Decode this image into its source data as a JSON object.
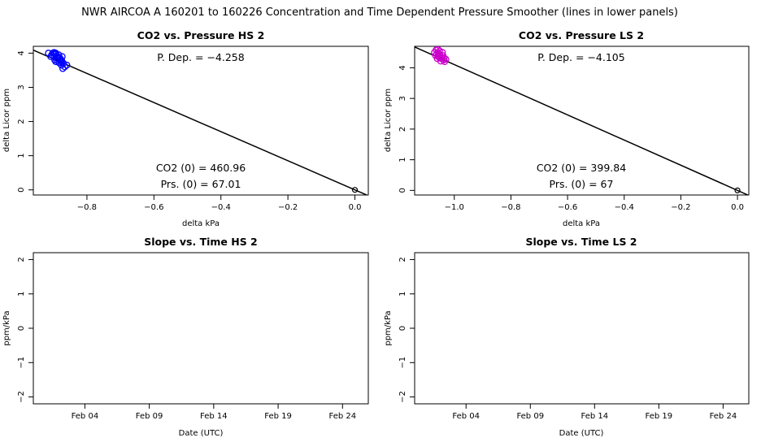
{
  "page_title": "NWR   AIRCOA A   160201 to 160226   Concentration and Time Dependent Pressure Smoother (lines in lower panels)",
  "chart_data": [
    {
      "id": "hs-pressure",
      "type": "scatter",
      "title": "CO2 vs. Pressure HS 2",
      "xlabel": "delta kPa",
      "ylabel": "delta Licor ppm",
      "xlim": [
        -0.96,
        0.04
      ],
      "ylim": [
        -0.15,
        4.2
      ],
      "xticks": [
        -0.8,
        -0.6,
        -0.4,
        -0.2,
        0.0
      ],
      "xtick_labels": [
        "−0.8",
        "−0.6",
        "−0.4",
        "−0.2",
        "0.0"
      ],
      "yticks": [
        0,
        1,
        2,
        3,
        4
      ],
      "ytick_labels": [
        "0",
        "1",
        "2",
        "3",
        "4"
      ],
      "point_color": "#0000ff",
      "points": [
        [
          -0.915,
          4.0
        ],
        [
          -0.905,
          3.95
        ],
        [
          -0.898,
          3.9
        ],
        [
          -0.893,
          4.0
        ],
        [
          -0.889,
          3.85
        ],
        [
          -0.884,
          3.95
        ],
        [
          -0.879,
          3.8
        ],
        [
          -0.874,
          3.9
        ],
        [
          -0.87,
          3.7
        ],
        [
          -0.878,
          3.75
        ],
        [
          -0.888,
          3.9
        ],
        [
          -0.896,
          3.8
        ],
        [
          -0.902,
          4.0
        ],
        [
          -0.892,
          3.98
        ],
        [
          -0.883,
          3.72
        ],
        [
          -0.866,
          3.6
        ],
        [
          -0.86,
          3.65
        ],
        [
          -0.876,
          3.65
        ],
        [
          -0.893,
          3.75
        ],
        [
          -0.908,
          3.9
        ],
        [
          -0.897,
          3.98
        ],
        [
          -0.886,
          3.84
        ],
        [
          -0.875,
          3.78
        ],
        [
          -0.872,
          3.55
        ],
        [
          -0.88,
          3.85
        ],
        [
          -0.898,
          4.02
        ],
        [
          -0.888,
          3.78
        ]
      ],
      "origin_point": [
        0.0,
        0.0
      ],
      "fit_line": {
        "slope": -4.258,
        "intercept": 0.0
      },
      "annotations": {
        "p_dep": "P. Dep. =  −4.258",
        "co2_zero": "CO2 (0) =  460.96",
        "prs_zero": "Prs. (0) =  67.01"
      }
    },
    {
      "id": "ls-pressure",
      "type": "scatter",
      "title": "CO2 vs. Pressure LS 2",
      "xlabel": "delta kPa",
      "ylabel": "delta Licor ppm",
      "xlim": [
        -1.14,
        0.04
      ],
      "ylim": [
        -0.15,
        4.7
      ],
      "xticks": [
        -1.0,
        -0.8,
        -0.6,
        -0.4,
        -0.2,
        0.0
      ],
      "xtick_labels": [
        "−1.0",
        "−0.8",
        "−0.6",
        "−0.4",
        "−0.2",
        "0.0"
      ],
      "yticks": [
        0,
        1,
        2,
        3,
        4
      ],
      "ytick_labels": [
        "0",
        "1",
        "2",
        "3",
        "4"
      ],
      "point_color": "#cc00cc",
      "points": [
        [
          -1.07,
          4.5
        ],
        [
          -1.062,
          4.45
        ],
        [
          -1.058,
          4.6
        ],
        [
          -1.055,
          4.35
        ],
        [
          -1.05,
          4.4
        ],
        [
          -1.046,
          4.3
        ],
        [
          -1.042,
          4.5
        ],
        [
          -1.038,
          4.25
        ],
        [
          -1.034,
          4.2
        ],
        [
          -1.06,
          4.3
        ],
        [
          -1.066,
          4.4
        ],
        [
          -1.052,
          4.55
        ],
        [
          -1.044,
          4.35
        ],
        [
          -1.04,
          4.4
        ],
        [
          -1.048,
          4.22
        ],
        [
          -1.056,
          4.48
        ],
        [
          -1.03,
          4.28
        ],
        [
          -1.064,
          4.58
        ],
        [
          -1.036,
          4.32
        ],
        [
          -1.058,
          4.38
        ]
      ],
      "origin_point": [
        0.0,
        0.0
      ],
      "fit_line": {
        "slope": -4.105,
        "intercept": 0.0
      },
      "annotations": {
        "p_dep": "P. Dep. =  −4.105",
        "co2_zero": "CO2 (0) =  399.84",
        "prs_zero": "Prs. (0) =  67"
      }
    },
    {
      "id": "hs-time",
      "type": "line",
      "title": "Slope vs. Time HS 2",
      "xlabel": "Date (UTC)",
      "ylabel": "ppm/kPa",
      "xlim": [
        "2016-01-31",
        "2016-02-26"
      ],
      "ylim": [
        -2.2,
        2.2
      ],
      "xticks": [
        "2016-02-04",
        "2016-02-09",
        "2016-02-14",
        "2016-02-19",
        "2016-02-24"
      ],
      "xtick_labels": [
        "Feb 04",
        "Feb 09",
        "Feb 14",
        "Feb 19",
        "Feb 24"
      ],
      "yticks": [
        -2,
        -1,
        0,
        1,
        2
      ],
      "ytick_labels": [
        "−2",
        "−1",
        "0",
        "1",
        "2"
      ],
      "series": []
    },
    {
      "id": "ls-time",
      "type": "line",
      "title": "Slope vs. Time LS 2",
      "xlabel": "Date (UTC)",
      "ylabel": "ppm/kPa",
      "xlim": [
        "2016-01-31",
        "2016-02-26"
      ],
      "ylim": [
        -2.2,
        2.2
      ],
      "xticks": [
        "2016-02-04",
        "2016-02-09",
        "2016-02-14",
        "2016-02-19",
        "2016-02-24"
      ],
      "xtick_labels": [
        "Feb 04",
        "Feb 09",
        "Feb 14",
        "Feb 19",
        "Feb 24"
      ],
      "yticks": [
        -2,
        -1,
        0,
        1,
        2
      ],
      "ytick_labels": [
        "−2",
        "−1",
        "0",
        "1",
        "2"
      ],
      "series": []
    }
  ]
}
